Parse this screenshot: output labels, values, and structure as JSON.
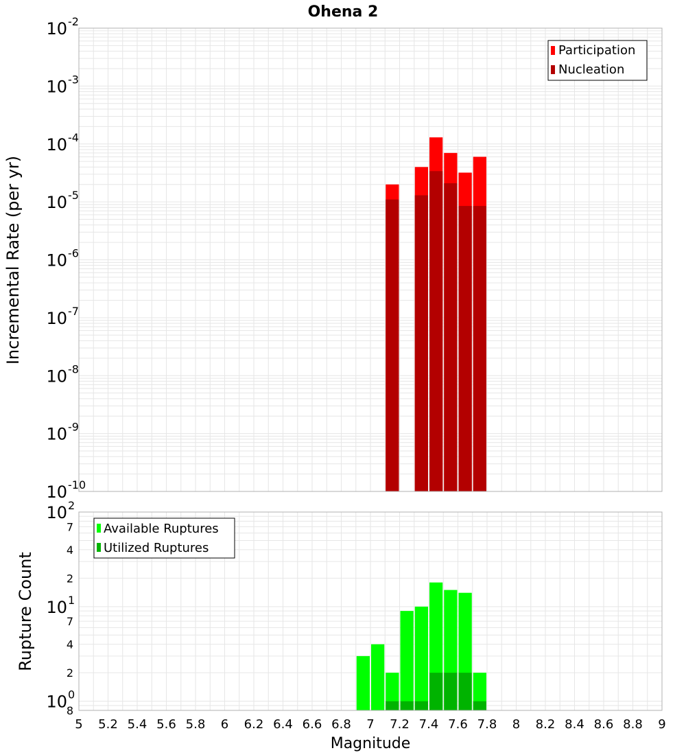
{
  "title": "Ohena 2",
  "xlabel": "Magnitude",
  "x_ticks": [
    "5",
    "5.2",
    "5.4",
    "5.6",
    "5.8",
    "6",
    "6.2",
    "6.4",
    "6.6",
    "6.8",
    "7",
    "7.2",
    "7.4",
    "7.6",
    "7.8",
    "8",
    "8.2",
    "8.4",
    "8.6",
    "8.8",
    "9"
  ],
  "top_panel": {
    "ylabel": "Incremental Rate (per yr)",
    "y_ticks": [
      {
        "base": "10",
        "exp": "-2",
        "value": 0.01
      },
      {
        "base": "10",
        "exp": "-3",
        "value": 0.001
      },
      {
        "base": "10",
        "exp": "-4",
        "value": 0.0001
      },
      {
        "base": "10",
        "exp": "-5",
        "value": 1e-05
      },
      {
        "base": "10",
        "exp": "-6",
        "value": 1e-06
      },
      {
        "base": "10",
        "exp": "-7",
        "value": 1e-07
      },
      {
        "base": "10",
        "exp": "-8",
        "value": 1e-08
      },
      {
        "base": "10",
        "exp": "-9",
        "value": 1e-09
      },
      {
        "base": "10",
        "exp": "-10",
        "value": 1e-10
      }
    ],
    "legend": [
      "Participation",
      "Nucleation"
    ]
  },
  "bottom_panel": {
    "ylabel": "Rupture Count",
    "y_ticks_major": [
      {
        "base": "10",
        "exp": "2",
        "value": 100
      },
      {
        "base": "10",
        "exp": "1",
        "value": 10
      },
      {
        "base": "10",
        "exp": "0",
        "value": 1
      }
    ],
    "y_ticks_minor": [
      {
        "label": "7",
        "value": 70
      },
      {
        "label": "4",
        "value": 40
      },
      {
        "label": "2",
        "value": 20
      },
      {
        "label": "7",
        "value": 7
      },
      {
        "label": "4",
        "value": 4
      },
      {
        "label": "2",
        "value": 2
      },
      {
        "label": "8",
        "value": 0.8
      }
    ],
    "legend": [
      "Available Ruptures",
      "Utilized Ruptures"
    ]
  },
  "colors": {
    "participation": "#ff0000",
    "nucleation": "#b30000",
    "available": "#00ff00",
    "utilized": "#00b300",
    "grid": "#e6e6e6",
    "frame": "#b0b0b0"
  },
  "chart_data": [
    {
      "type": "bar",
      "title": "Ohena 2",
      "xlabel": "Magnitude",
      "ylabel": "Incremental Rate (per yr)",
      "y_scale": "log",
      "xlim": [
        5,
        9
      ],
      "ylim": [
        1e-10,
        0.01
      ],
      "bin_width": 0.1,
      "x": [
        7.15,
        7.35,
        7.45,
        7.55,
        7.65,
        7.75
      ],
      "series": [
        {
          "name": "Participation",
          "values": [
            2e-05,
            4e-05,
            0.00013,
            7e-05,
            3.2e-05,
            6e-05
          ]
        },
        {
          "name": "Nucleation",
          "values": [
            1.1e-05,
            1.3e-05,
            3.4e-05,
            2.1e-05,
            8.5e-06,
            8.5e-06
          ]
        }
      ],
      "legend": "top-right",
      "grid": true
    },
    {
      "type": "bar",
      "xlabel": "Magnitude",
      "ylabel": "Rupture Count",
      "y_scale": "log",
      "xlim": [
        5,
        9
      ],
      "ylim": [
        0.8,
        100
      ],
      "bin_width": 0.1,
      "x": [
        6.95,
        7.05,
        7.15,
        7.25,
        7.35,
        7.45,
        7.55,
        7.65,
        7.75
      ],
      "series": [
        {
          "name": "Available Ruptures",
          "values": [
            3,
            4,
            2,
            9,
            10,
            18,
            15,
            14,
            2
          ]
        },
        {
          "name": "Utilized Ruptures",
          "values": [
            0,
            0,
            1,
            1,
            1,
            2,
            2,
            2,
            1
          ]
        }
      ],
      "legend": "top-left",
      "grid": true
    }
  ]
}
